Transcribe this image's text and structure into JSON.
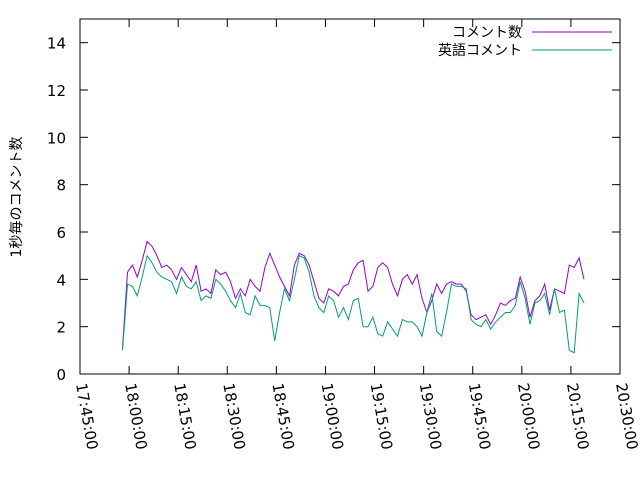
{
  "chart_data": {
    "type": "line",
    "ylabel": "1秒毎のコメント数",
    "xlabel": "",
    "title": "",
    "xlim": [
      "17:45:00",
      "20:30:00"
    ],
    "ylim": [
      0,
      15
    ],
    "x_ticks": [
      "17:45:00",
      "18:00:00",
      "18:15:00",
      "18:30:00",
      "18:45:00",
      "19:00:00",
      "19:15:00",
      "19:30:00",
      "19:45:00",
      "20:00:00",
      "20:15:00",
      "20:30:00"
    ],
    "y_ticks": [
      0,
      2,
      4,
      6,
      8,
      10,
      12,
      14
    ],
    "grid": false,
    "legend_position": "top-right",
    "sample_interval_minutes": 1.5,
    "series": [
      {
        "name": "コメント数",
        "color": "#9400d3",
        "x_start": "17:58:00",
        "values": [
          1.1,
          4.3,
          4.6,
          4.1,
          4.8,
          5.6,
          5.4,
          5.0,
          4.5,
          4.6,
          4.4,
          4.0,
          4.5,
          4.2,
          3.9,
          4.6,
          3.5,
          3.6,
          3.4,
          4.4,
          4.2,
          4.3,
          3.9,
          3.2,
          3.6,
          3.3,
          4.0,
          3.7,
          3.5,
          4.5,
          5.1,
          4.6,
          4.1,
          3.7,
          3.3,
          4.6,
          5.1,
          5.0,
          4.6,
          3.9,
          3.2,
          3.0,
          3.6,
          3.5,
          3.3,
          3.7,
          3.8,
          4.4,
          4.7,
          4.8,
          3.5,
          3.7,
          4.5,
          4.7,
          4.5,
          3.8,
          3.3,
          4.0,
          4.2,
          3.8,
          4.2,
          3.2,
          2.6,
          3.1,
          3.8,
          3.4,
          3.8,
          3.9,
          3.8,
          3.8,
          3.5,
          2.5,
          2.3,
          2.4,
          2.5,
          2.1,
          2.5,
          3.0,
          2.9,
          3.1,
          3.2,
          4.1,
          3.5,
          2.4,
          3.1,
          3.3,
          3.8,
          2.7,
          3.6,
          3.5,
          3.4,
          4.6,
          4.5,
          4.9,
          4.0
        ]
      },
      {
        "name": "英語コメント",
        "color": "#009e73",
        "x_start": "17:58:00",
        "values": [
          1.0,
          3.8,
          3.7,
          3.3,
          4.1,
          5.0,
          4.7,
          4.3,
          4.1,
          4.0,
          3.9,
          3.4,
          4.1,
          3.7,
          3.6,
          3.9,
          3.1,
          3.3,
          3.2,
          4.0,
          3.8,
          3.5,
          3.1,
          2.8,
          3.4,
          2.6,
          2.5,
          3.3,
          2.9,
          2.9,
          2.8,
          1.4,
          2.6,
          3.6,
          3.1,
          4.0,
          5.0,
          4.9,
          4.3,
          3.3,
          2.8,
          2.6,
          3.3,
          3.1,
          2.4,
          2.8,
          2.3,
          3.1,
          3.2,
          2.0,
          2.0,
          2.4,
          1.7,
          1.6,
          2.2,
          1.9,
          1.6,
          2.3,
          2.2,
          2.2,
          2.0,
          1.6,
          2.6,
          3.4,
          1.8,
          1.6,
          2.6,
          3.8,
          3.7,
          3.7,
          3.6,
          2.3,
          2.1,
          2.0,
          2.3,
          1.9,
          2.2,
          2.4,
          2.6,
          2.6,
          2.9,
          3.9,
          3.2,
          2.1,
          3.0,
          3.1,
          3.4,
          2.5,
          3.6,
          2.6,
          2.7,
          1.0,
          0.9,
          3.4,
          3.0
        ]
      }
    ]
  }
}
